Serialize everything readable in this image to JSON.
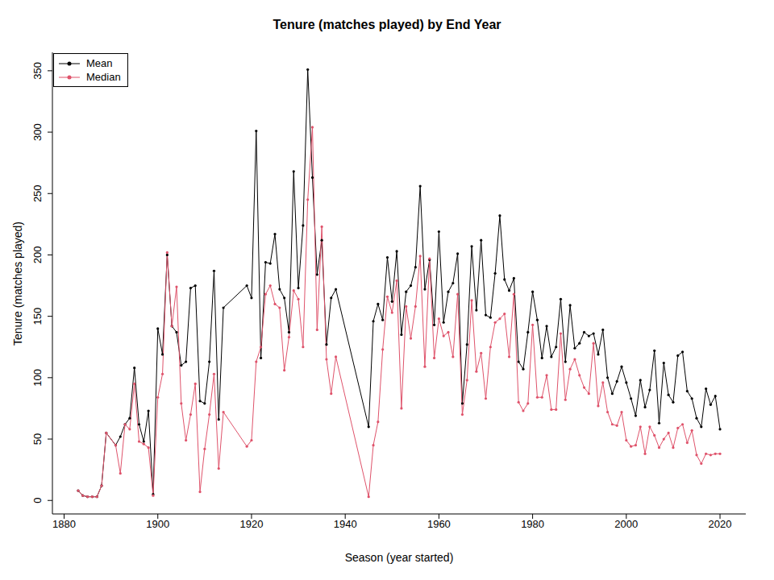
{
  "chart_data": {
    "type": "line",
    "title": "Tenure (matches played) by End Year",
    "x_label": "Season (year started)",
    "y_label": "Tenure (matches played)",
    "x": [
      1883,
      1884,
      1885,
      1886,
      1887,
      1888,
      1889,
      1891,
      1892,
      1893,
      1894,
      1895,
      1896,
      1897,
      1898,
      1899,
      1900,
      1901,
      1902,
      1903,
      1904,
      1905,
      1906,
      1907,
      1908,
      1909,
      1910,
      1911,
      1912,
      1913,
      1914,
      1919,
      1920,
      1921,
      1922,
      1923,
      1924,
      1925,
      1926,
      1927,
      1928,
      1929,
      1930,
      1931,
      1932,
      1933,
      1934,
      1935,
      1936,
      1937,
      1938,
      1945,
      1946,
      1947,
      1948,
      1949,
      1950,
      1951,
      1952,
      1953,
      1954,
      1955,
      1956,
      1957,
      1958,
      1959,
      1960,
      1961,
      1962,
      1963,
      1964,
      1965,
      1966,
      1967,
      1968,
      1969,
      1970,
      1971,
      1972,
      1973,
      1974,
      1975,
      1976,
      1977,
      1978,
      1979,
      1980,
      1981,
      1982,
      1983,
      1984,
      1985,
      1986,
      1987,
      1988,
      1989,
      1990,
      1991,
      1992,
      1993,
      1994,
      1995,
      1996,
      1997,
      1998,
      1999,
      2000,
      2001,
      2002,
      2003,
      2004,
      2005,
      2006,
      2007,
      2008,
      2009,
      2010,
      2011,
      2012,
      2013,
      2014,
      2015,
      2016,
      2017,
      2018,
      2019,
      2020
    ],
    "series": [
      {
        "name": "Mean",
        "color": "#000000",
        "marker": "circle",
        "line_style": "solid",
        "values": [
          8,
          4,
          3,
          3,
          3,
          12,
          55,
          45,
          52,
          62,
          67,
          108,
          62,
          48,
          73,
          5,
          140,
          119,
          200,
          142,
          137,
          110,
          113,
          173,
          175,
          81,
          79,
          113,
          187,
          66,
          157,
          175,
          165,
          301,
          116,
          194,
          193,
          217,
          172,
          165,
          137,
          268,
          173,
          224,
          351,
          263,
          184,
          212,
          127,
          165,
          172,
          60,
          146,
          160,
          147,
          198,
          162,
          203,
          135,
          170,
          175,
          190,
          256,
          172,
          196,
          143,
          219,
          145,
          170,
          177,
          201,
          79,
          127,
          207,
          155,
          212,
          151,
          149,
          185,
          232,
          180,
          171,
          181,
          113,
          107,
          137,
          170,
          147,
          116,
          142,
          117,
          125,
          164,
          113,
          159,
          124,
          128,
          137,
          134,
          136,
          119,
          139,
          100,
          87,
          97,
          109,
          96,
          83,
          69,
          98,
          76,
          90,
          122,
          63,
          112,
          86,
          80,
          118,
          121,
          89,
          83,
          67,
          60,
          91,
          78,
          85,
          58
        ]
      },
      {
        "name": "Median",
        "color": "#DF536B",
        "marker": "circle",
        "line_style": "solid",
        "values": [
          8,
          4,
          3,
          3,
          3,
          12,
          55,
          45,
          22,
          62,
          58,
          95,
          48,
          46,
          43,
          4,
          84,
          103,
          202,
          142,
          174,
          79,
          49,
          70,
          95,
          7,
          42,
          70,
          103,
          26,
          72,
          44,
          49,
          113,
          125,
          168,
          175,
          160,
          157,
          106,
          133,
          171,
          164,
          125,
          245,
          304,
          139,
          223,
          115,
          87,
          117,
          3,
          45,
          64,
          123,
          166,
          153,
          179,
          75,
          158,
          132,
          158,
          199,
          109,
          197,
          116,
          148,
          134,
          137,
          117,
          168,
          70,
          98,
          163,
          105,
          120,
          83,
          125,
          145,
          148,
          152,
          117,
          168,
          80,
          73,
          79,
          143,
          84,
          84,
          102,
          74,
          74,
          136,
          82,
          107,
          115,
          102,
          92,
          87,
          128,
          77,
          96,
          72,
          62,
          61,
          72,
          49,
          44,
          45,
          60,
          38,
          60,
          53,
          43,
          50,
          55,
          43,
          59,
          62,
          47,
          57,
          37,
          30,
          38,
          37,
          38,
          38
        ]
      }
    ],
    "xlim": [
      1877.5,
      2025.5
    ],
    "xticks": [
      1880,
      1900,
      1920,
      1940,
      1960,
      1980,
      2000,
      2020
    ],
    "ylim": [
      -11,
      365
    ],
    "yticks": [
      0,
      50,
      100,
      150,
      200,
      250,
      300,
      350
    ],
    "legend": "top-left",
    "grid": false
  }
}
